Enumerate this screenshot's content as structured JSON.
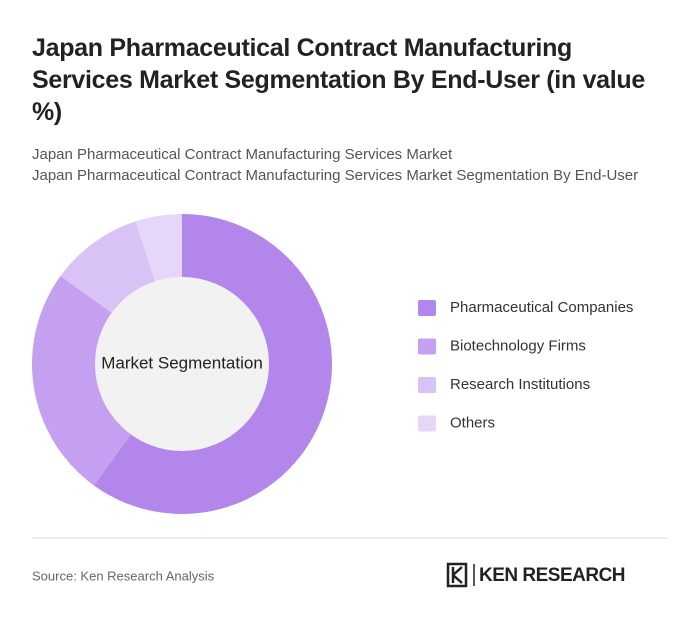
{
  "chart_data": {
    "type": "pie",
    "title": "Japan Pharmaceutical Contract Manufacturing Services Market Segmentation By End-User (in value %)",
    "subtitles": [
      "Japan Pharmaceutical Contract Manufacturing Services Market",
      "Japan Pharmaceutical Contract Manufacturing Services Market Segmentation By End-User"
    ],
    "center_label": "Market Segmentation",
    "categories": [
      "Pharmaceutical Companies",
      "Biotechnology Firms",
      "Research Institutions",
      "Others"
    ],
    "values": [
      60,
      25,
      10,
      5
    ],
    "colors": [
      "#b286eb",
      "#c5a0f0",
      "#d9c3f6",
      "#e6d7f9"
    ]
  },
  "source": "Source: Ken Research Analysis",
  "logo": "KEN RESEARCH"
}
